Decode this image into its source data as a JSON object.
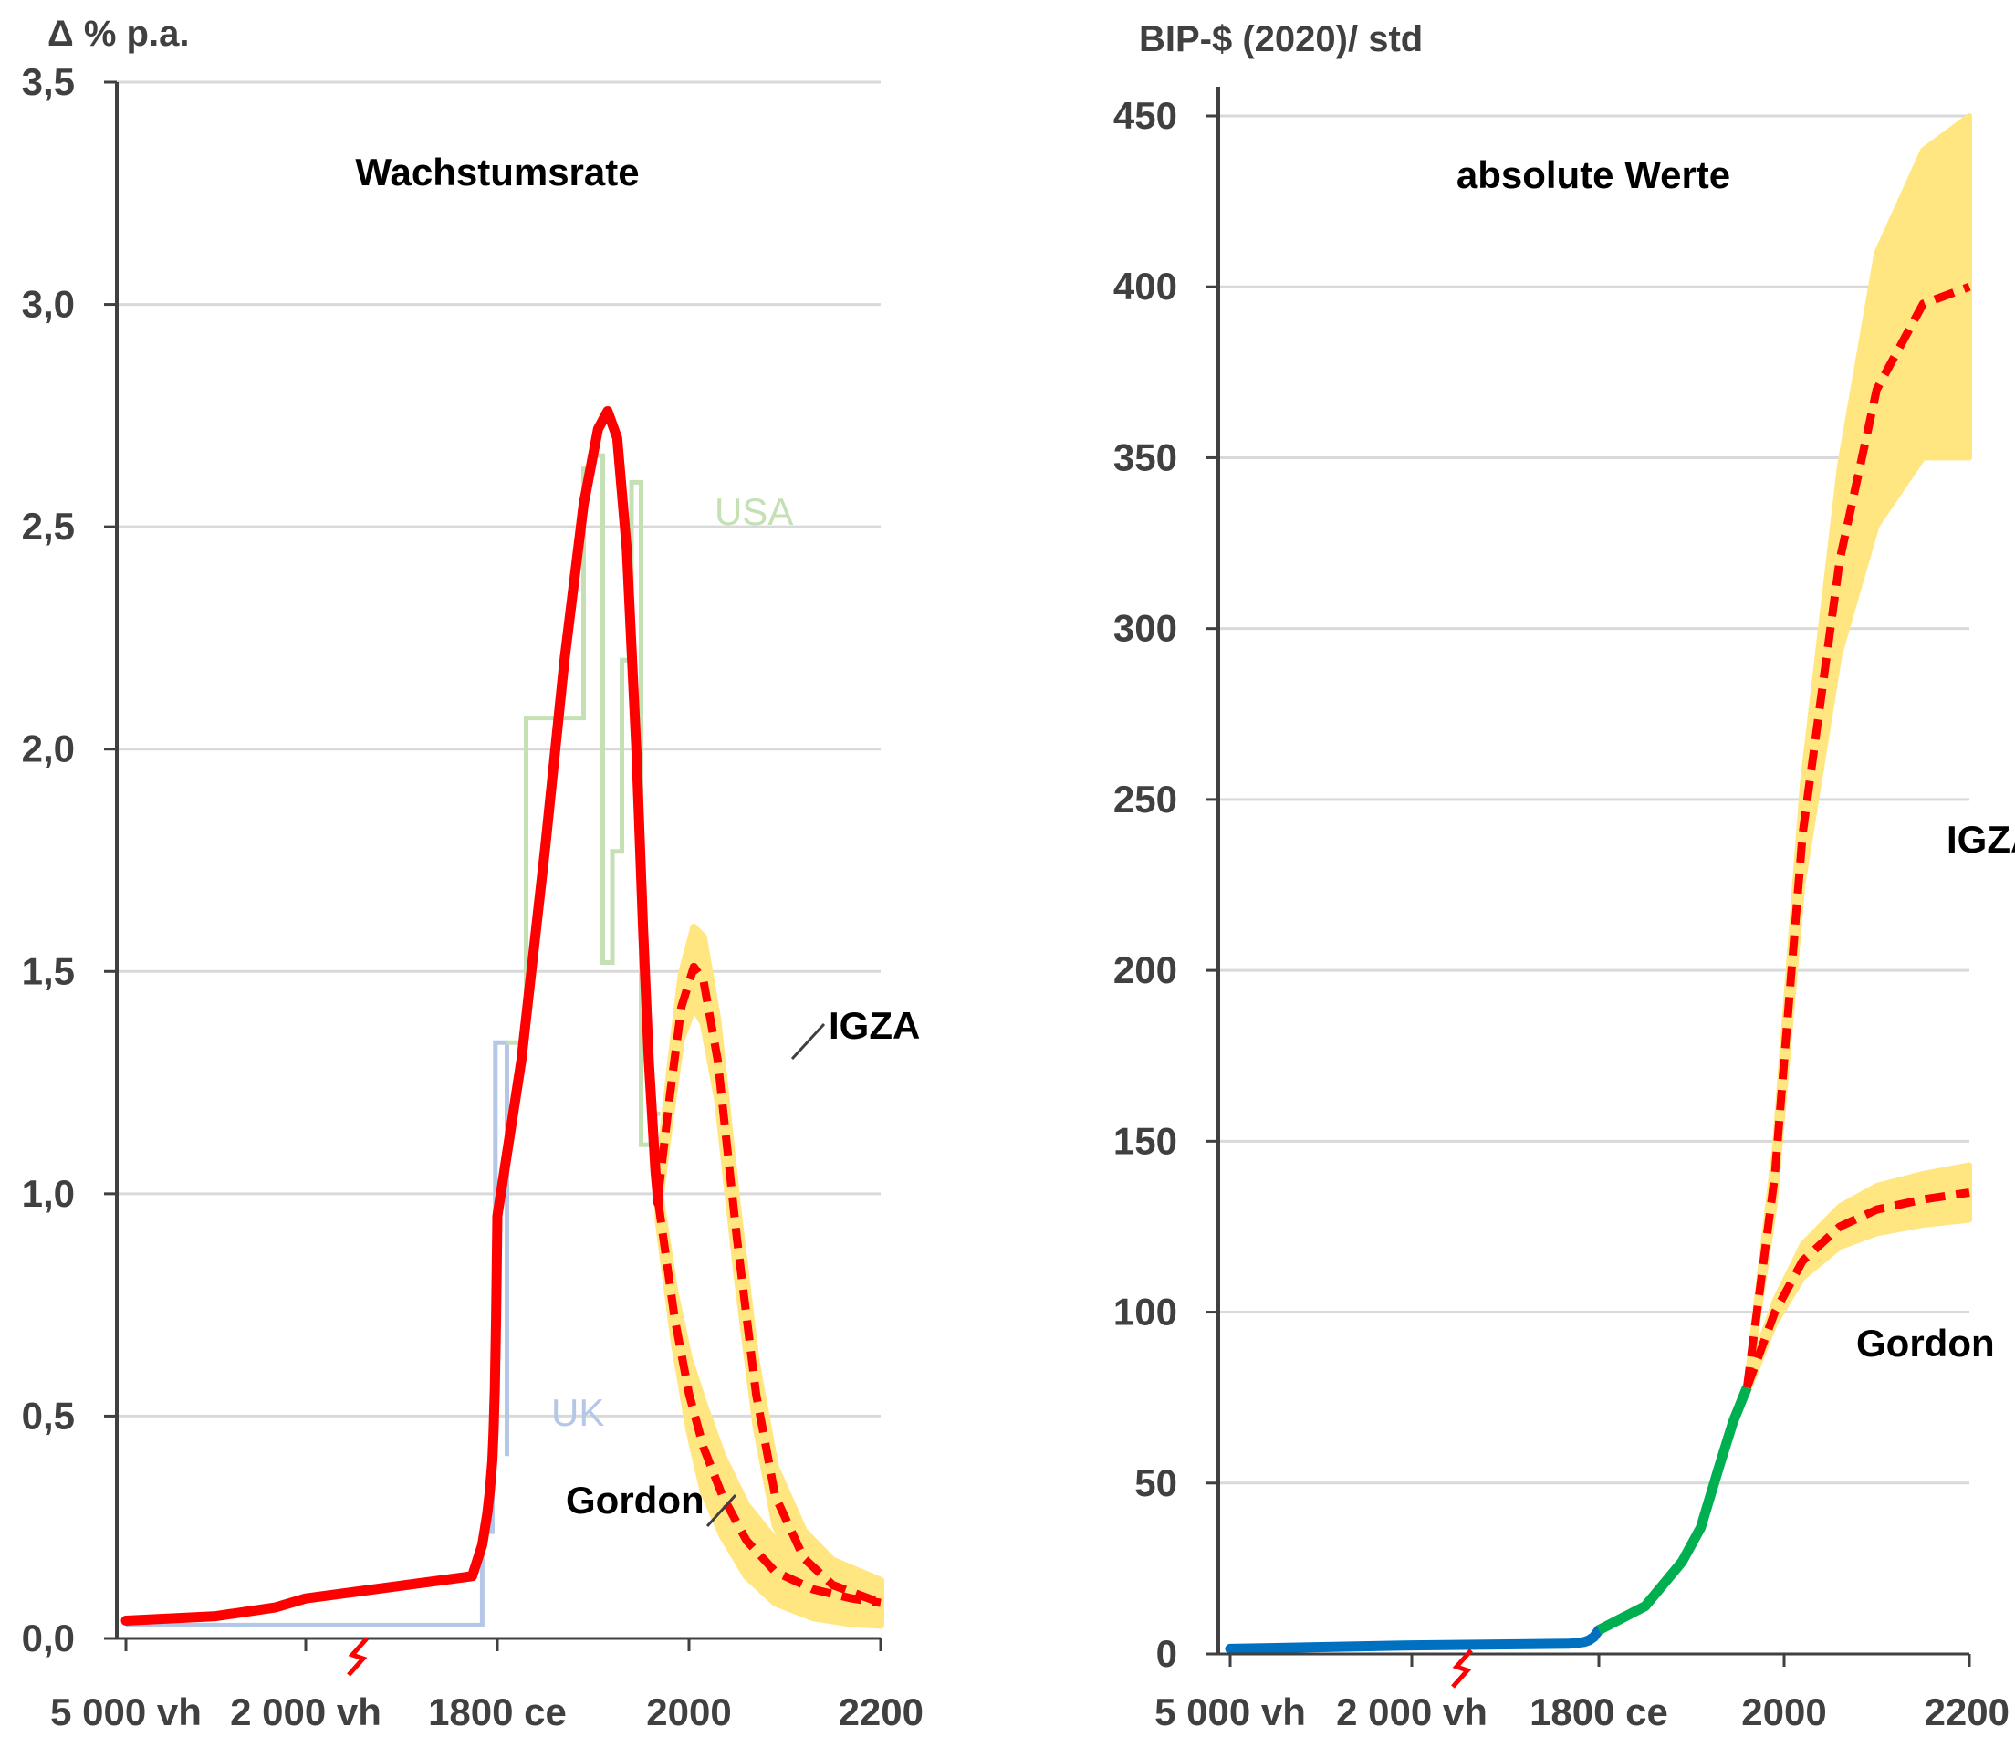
{
  "chart_data": [
    {
      "type": "line",
      "title": "Wachstumsrate",
      "ylabel": "Δ % p.a.",
      "xlabel": "",
      "ylim": [
        0,
        3.5
      ],
      "y_ticks": [
        "0,0",
        "0,5",
        "1,0",
        "1,5",
        "2,0",
        "2,5",
        "3,0",
        "3,5"
      ],
      "x_ticks": [
        "5 000 vh",
        "2 000 vh",
        "1800 ce",
        "2000",
        "2200"
      ],
      "axis_break_between": [
        "2 000 vh",
        "1800 ce"
      ],
      "grid": true,
      "colors": {
        "main": "#ff0000",
        "band": "#ffe680",
        "uk": "#b4c7e7",
        "usa": "#c5e0b4"
      },
      "series": [
        {
          "name": "UK",
          "kind": "step",
          "points": [
            [
              -5000,
              0.03
            ],
            [
              1500,
              0.03
            ],
            [
              1500,
              0.24
            ],
            [
              1700,
              0.24
            ],
            [
              1700,
              0.41
            ],
            [
              1760,
              0.41
            ],
            [
              1760,
              1.34
            ],
            [
              1810,
              1.34
            ],
            [
              1810,
              0.41
            ]
          ]
        },
        {
          "name": "USA",
          "kind": "step",
          "points": [
            [
              1810,
              1.34
            ],
            [
              1830,
              1.34
            ],
            [
              1830,
              2.07
            ],
            [
              1890,
              2.07
            ],
            [
              1890,
              2.63
            ],
            [
              1900,
              2.63
            ],
            [
              1900,
              2.66
            ],
            [
              1910,
              2.66
            ],
            [
              1910,
              1.52
            ],
            [
              1920,
              1.52
            ],
            [
              1920,
              1.77
            ],
            [
              1930,
              1.77
            ],
            [
              1930,
              2.2
            ],
            [
              1940,
              2.2
            ],
            [
              1940,
              2.6
            ],
            [
              1950,
              2.6
            ],
            [
              1950,
              1.11
            ],
            [
              1960,
              1.11
            ],
            [
              1960,
              1.18
            ],
            [
              1970,
              1.18
            ]
          ]
        },
        {
          "name": "",
          "kind": "historic",
          "points": [
            [
              -5000,
              0.04
            ],
            [
              -3500,
              0.05
            ],
            [
              -2500,
              0.07
            ],
            [
              -2000,
              0.09
            ],
            [
              1300,
              0.14
            ],
            [
              1500,
              0.21
            ],
            [
              1600,
              0.28
            ],
            [
              1650,
              0.33
            ],
            [
              1700,
              0.4
            ],
            [
              1725,
              0.47
            ],
            [
              1750,
              0.56
            ],
            [
              1775,
              0.72
            ],
            [
              1800,
              0.95
            ],
            [
              1825,
              1.3
            ],
            [
              1850,
              1.78
            ],
            [
              1870,
              2.2
            ],
            [
              1890,
              2.55
            ],
            [
              1905,
              2.72
            ],
            [
              1915,
              2.76
            ],
            [
              1925,
              2.7
            ],
            [
              1935,
              2.45
            ],
            [
              1945,
              2.0
            ],
            [
              1952,
              1.6
            ],
            [
              1958,
              1.3
            ],
            [
              1965,
              1.05
            ],
            [
              1968,
              0.98
            ]
          ]
        },
        {
          "name": "Gordon",
          "kind": "projection",
          "band_half_width": [
            0.04,
            0.1,
            0.07,
            0.05
          ],
          "points": [
            [
              1968,
              0.98
            ],
            [
              1985,
              0.72
            ],
            [
              2000,
              0.55
            ],
            [
              2015,
              0.43
            ],
            [
              2035,
              0.32
            ],
            [
              2060,
              0.22
            ],
            [
              2090,
              0.15
            ],
            [
              2130,
              0.11
            ],
            [
              2170,
              0.09
            ],
            [
              2200,
              0.08
            ]
          ]
        },
        {
          "name": "IGZA",
          "kind": "projection",
          "band_half_width": [
            0.04,
            0.1,
            0.07,
            0.05
          ],
          "points": [
            [
              1968,
              1.0
            ],
            [
              1980,
              1.22
            ],
            [
              1992,
              1.42
            ],
            [
              2005,
              1.51
            ],
            [
              2015,
              1.48
            ],
            [
              2030,
              1.3
            ],
            [
              2050,
              0.9
            ],
            [
              2070,
              0.55
            ],
            [
              2090,
              0.32
            ],
            [
              2120,
              0.18
            ],
            [
              2150,
              0.12
            ],
            [
              2200,
              0.08
            ]
          ]
        }
      ],
      "annotations": [
        {
          "text": "IGZA"
        },
        {
          "text": "Gordon"
        },
        {
          "text": "UK"
        },
        {
          "text": "USA"
        }
      ]
    },
    {
      "type": "line",
      "title": "absolute Werte",
      "ylabel": "BIP-$ (2020)/ std",
      "xlabel": "",
      "ylim": [
        0,
        450
      ],
      "y_ticks": [
        "0",
        "50",
        "100",
        "150",
        "200",
        "250",
        "300",
        "350",
        "400",
        "450"
      ],
      "x_ticks": [
        "5 000 vh",
        "2 000 vh",
        "1800 ce",
        "2000",
        "2200"
      ],
      "axis_break_between": [
        "2 000 vh",
        "1800 ce"
      ],
      "grid": true,
      "colors": {
        "early": "#0070c0",
        "modern": "#00b050",
        "projection": "#ff0000",
        "band": "#ffe680"
      },
      "series": [
        {
          "name": "",
          "kind": "early",
          "points": [
            [
              -5000,
              1.5
            ],
            [
              -3500,
              2
            ],
            [
              -2000,
              2.5
            ],
            [
              1200,
              3
            ],
            [
              1500,
              3.5
            ],
            [
              1600,
              4
            ],
            [
              1700,
              5
            ],
            [
              1750,
              6
            ],
            [
              1800,
              7
            ]
          ]
        },
        {
          "name": "",
          "kind": "modern",
          "points": [
            [
              1800,
              7
            ],
            [
              1850,
              14
            ],
            [
              1890,
              27
            ],
            [
              1910,
              37
            ],
            [
              1930,
              55
            ],
            [
              1945,
              68
            ],
            [
              1960,
              78
            ]
          ]
        },
        {
          "name": "IGZA",
          "kind": "projection",
          "points": [
            [
              1960,
              78
            ],
            [
              1990,
              140
            ],
            [
              2020,
              240
            ],
            [
              2060,
              320
            ],
            [
              2100,
              370
            ],
            [
              2150,
              395
            ],
            [
              2200,
              400
            ]
          ],
          "band_half_width": [
            2,
            15,
            40,
            50
          ]
        },
        {
          "name": "Gordon",
          "kind": "projection",
          "points": [
            [
              1960,
              78
            ],
            [
              1990,
              100
            ],
            [
              2020,
              115
            ],
            [
              2060,
              125
            ],
            [
              2100,
              130
            ],
            [
              2150,
              133
            ],
            [
              2200,
              135
            ]
          ],
          "band_half_width": [
            2,
            5,
            7,
            8
          ]
        }
      ],
      "annotations": [
        {
          "text": "IGZA"
        },
        {
          "text": "Gordon"
        }
      ]
    }
  ]
}
